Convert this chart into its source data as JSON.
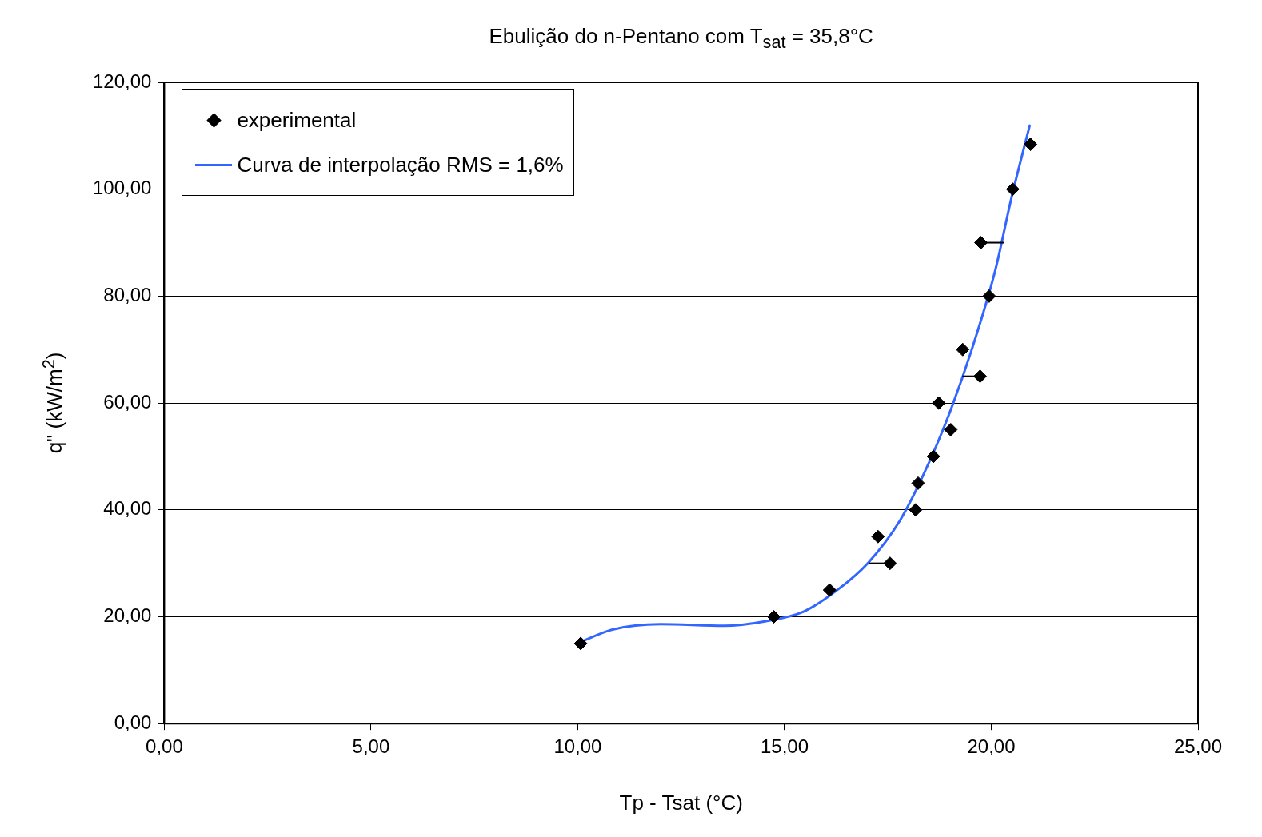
{
  "chart_data": {
    "type": "scatter",
    "title": "Ebulição do n-Pentano com T$_{sat}$ = 35,8°C",
    "xlabel": "Tp - Tsat (°C)",
    "ylabel": "q\" (kW/m$^{2}$)",
    "xlim": [
      0,
      25
    ],
    "xticks": [
      {
        "value": 0,
        "label": "0,00"
      },
      {
        "value": 5,
        "label": "5,00"
      },
      {
        "value": 10,
        "label": "10,00"
      },
      {
        "value": 15,
        "label": "15,00"
      },
      {
        "value": 20,
        "label": "20,00"
      },
      {
        "value": 25,
        "label": "25,00"
      }
    ],
    "ylim": [
      0,
      120
    ],
    "yticks": [
      {
        "value": 0,
        "label": "0,00"
      },
      {
        "value": 20,
        "label": "20,00"
      },
      {
        "value": 40,
        "label": "40,00"
      },
      {
        "value": 60,
        "label": "60,00"
      },
      {
        "value": 80,
        "label": "80,00"
      },
      {
        "value": 100,
        "label": "100,00"
      },
      {
        "value": 120,
        "label": "120,00"
      }
    ],
    "grid": "y",
    "legend": "top left",
    "series": [
      {
        "name": "experimental",
        "type": "scatter",
        "marker": "diamond",
        "color": "#000000",
        "x": [
          10.07,
          14.74,
          16.09,
          17.26,
          17.55,
          18.17,
          18.23,
          18.6,
          19.02,
          18.73,
          19.73,
          19.31,
          19.95,
          19.75,
          20.52,
          20.95
        ],
        "values": [
          15,
          20,
          25,
          35,
          30,
          40,
          45,
          50,
          55,
          60,
          65,
          70,
          80,
          90,
          100,
          108.4
        ],
        "xerrors": [
          null,
          null,
          null,
          null,
          [
            17.05,
            17.55
          ],
          null,
          null,
          null,
          null,
          null,
          [
            19.3,
            19.73
          ],
          null,
          null,
          [
            19.75,
            20.3
          ],
          null,
          null
        ]
      },
      {
        "name": "Curva de interpolação RMS = 1,6%",
        "type": "line",
        "marker": "none",
        "color": "#3366ff",
        "x": [
          10.07,
          10.84,
          12.0,
          13.54,
          14.5,
          15.47,
          16.24,
          17.01,
          17.79,
          18.36,
          18.94,
          19.52,
          20.1,
          20.49,
          20.93
        ],
        "values": [
          15.3,
          17.6,
          18.6,
          18.3,
          19.1,
          21.0,
          24.8,
          30,
          38,
          46.6,
          57.1,
          69.8,
          84.9,
          98.4,
          111.9
        ]
      }
    ]
  }
}
